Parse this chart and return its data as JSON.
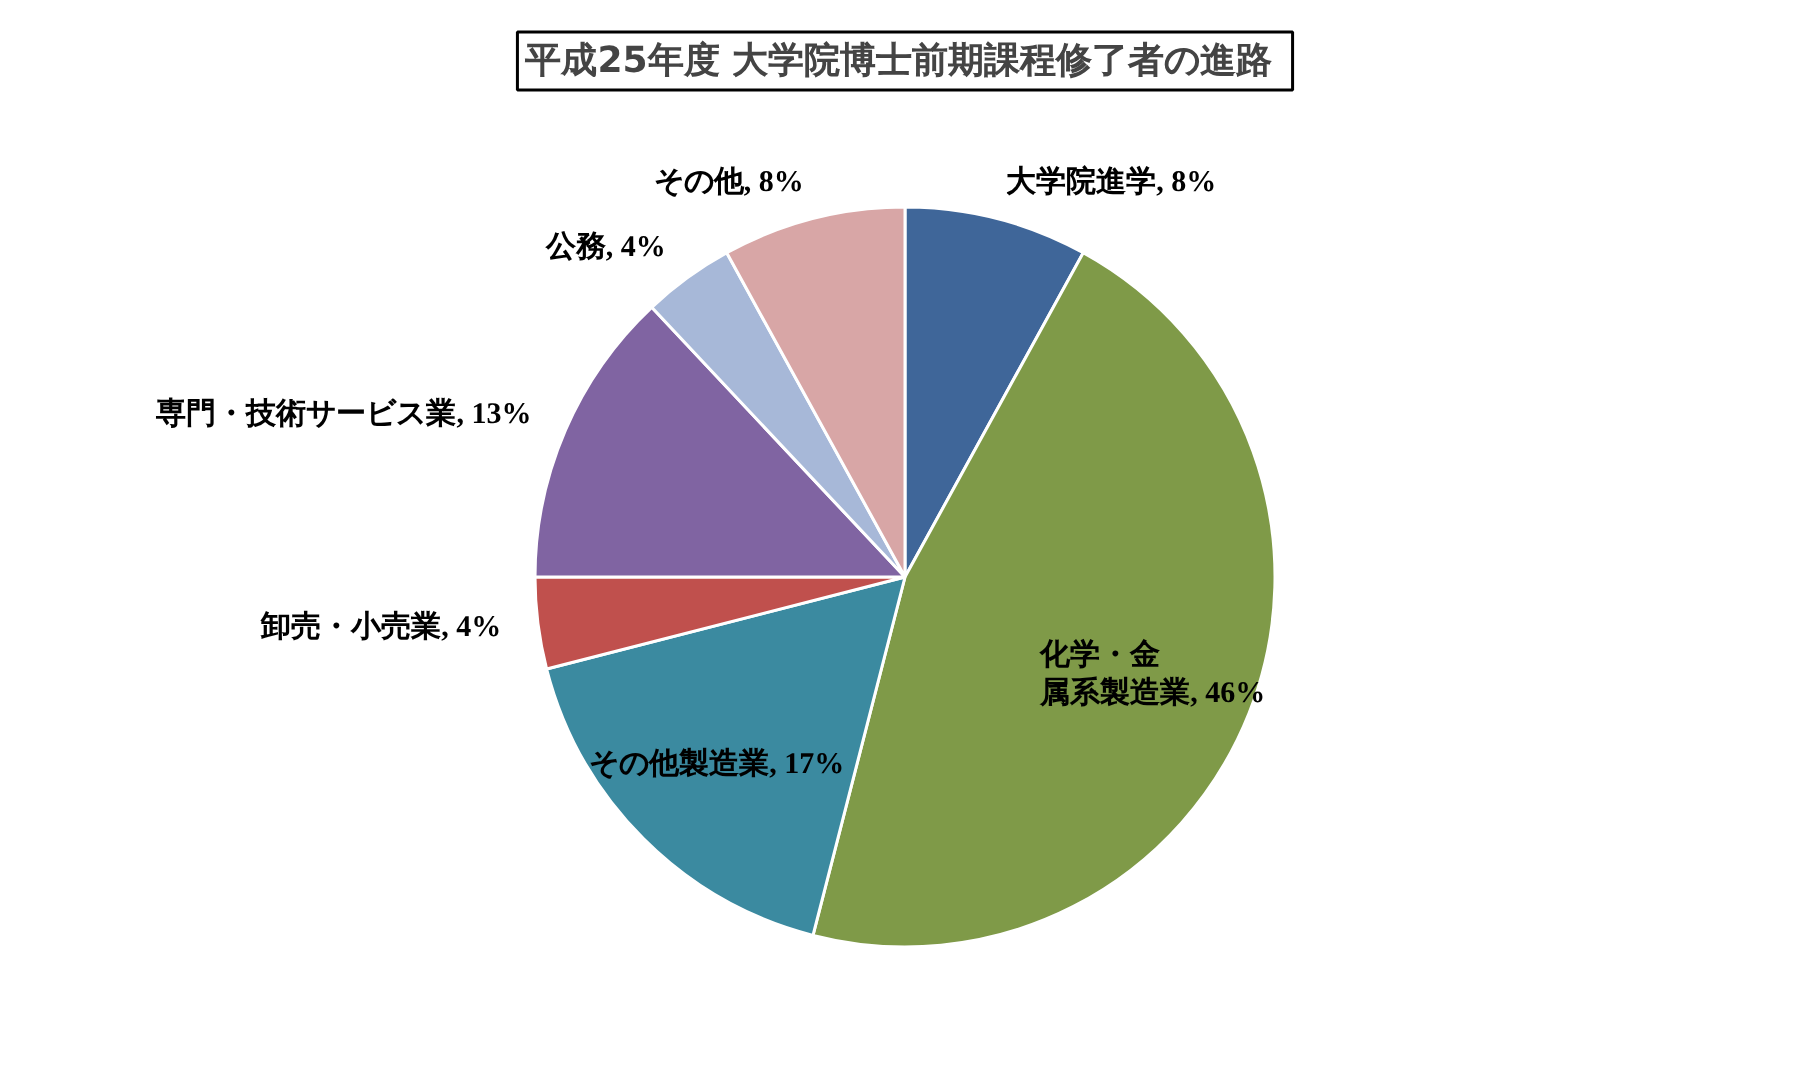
{
  "chart_data": {
    "type": "pie",
    "title": "平成25年度  大学院博士前期課程修了者の進路",
    "categories": [
      "大学院進学",
      "化学・金属系製造業",
      "その他製造業",
      "卸売・小売業",
      "専門・技術サービス業",
      "公務",
      "その他"
    ],
    "values": [
      8,
      46,
      17,
      4,
      13,
      4,
      8
    ],
    "value_labels": [
      "8%",
      "46%",
      "17%",
      "4%",
      "13%",
      "4%",
      "8%"
    ],
    "colors": [
      "#3f6699",
      "#7f9a48",
      "#3b8aa0",
      "#c0504d",
      "#8064a2",
      "#a7b8d8",
      "#d8a6a6"
    ]
  }
}
